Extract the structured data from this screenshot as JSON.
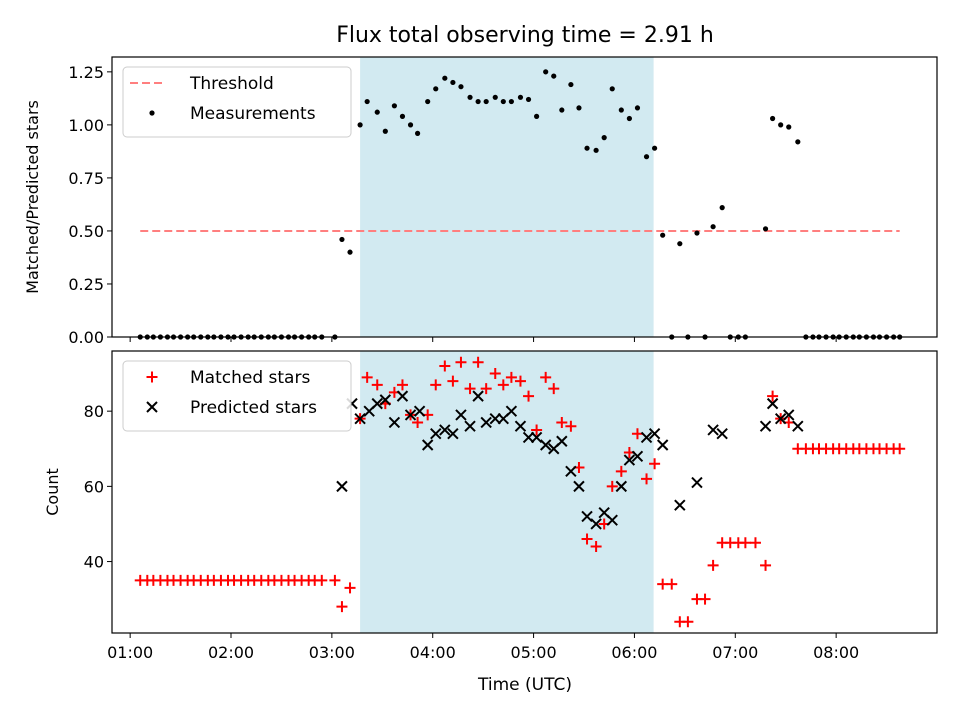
{
  "figure": {
    "title": "Flux total observing time = 2.91 h",
    "xlabel": "Time (UTC)"
  },
  "chart_data": [
    {
      "type": "scatter",
      "id": "ratio",
      "title": "Flux total observing time = 2.91 h",
      "xlabel": "",
      "ylabel": "Matched/Predicted stars",
      "xlim": [
        0.82,
        9.0
      ],
      "ylim": [
        0,
        1.32
      ],
      "xticks": [
        1,
        2,
        3,
        4,
        5,
        6,
        7,
        8
      ],
      "xtick_labels": [
        "01:00",
        "02:00",
        "03:00",
        "04:00",
        "05:00",
        "06:00",
        "07:00",
        "08:00"
      ],
      "yticks": [
        0,
        0.25,
        0.5,
        0.75,
        1.0,
        1.25
      ],
      "ytick_labels": [
        "0.00",
        "0.25",
        "0.50",
        "0.75",
        "1.00",
        "1.25"
      ],
      "grid": false,
      "legend_position": "top-left",
      "shaded_span": {
        "x0": 3.28,
        "x1": 6.19,
        "color": "#add8e6"
      },
      "threshold": {
        "name": "Threshold",
        "y": 0.5,
        "x0": 1.1,
        "x1": 8.63,
        "color": "#ff7f7f",
        "style": "dashed"
      },
      "series": [
        {
          "name": "Measurements",
          "marker": "dot",
          "color": "#000000",
          "points": [
            [
              1.1,
              0
            ],
            [
              1.17,
              0
            ],
            [
              1.23,
              0
            ],
            [
              1.3,
              0
            ],
            [
              1.37,
              0
            ],
            [
              1.43,
              0
            ],
            [
              1.5,
              0
            ],
            [
              1.57,
              0
            ],
            [
              1.63,
              0
            ],
            [
              1.7,
              0
            ],
            [
              1.77,
              0
            ],
            [
              1.83,
              0
            ],
            [
              1.9,
              0
            ],
            [
              1.97,
              0
            ],
            [
              2.03,
              0
            ],
            [
              2.1,
              0
            ],
            [
              2.17,
              0
            ],
            [
              2.23,
              0
            ],
            [
              2.3,
              0
            ],
            [
              2.37,
              0
            ],
            [
              2.43,
              0
            ],
            [
              2.5,
              0
            ],
            [
              2.57,
              0
            ],
            [
              2.63,
              0
            ],
            [
              2.7,
              0
            ],
            [
              2.77,
              0
            ],
            [
              2.83,
              0
            ],
            [
              2.9,
              0
            ],
            [
              3.03,
              0
            ],
            [
              3.1,
              0.46
            ],
            [
              3.18,
              0.4
            ],
            [
              3.28,
              1.0
            ],
            [
              3.35,
              1.11
            ],
            [
              3.45,
              1.06
            ],
            [
              3.53,
              0.97
            ],
            [
              3.62,
              1.09
            ],
            [
              3.7,
              1.04
            ],
            [
              3.78,
              1.0
            ],
            [
              3.85,
              0.96
            ],
            [
              3.95,
              1.11
            ],
            [
              4.03,
              1.17
            ],
            [
              4.12,
              1.22
            ],
            [
              4.2,
              1.2
            ],
            [
              4.28,
              1.18
            ],
            [
              4.37,
              1.13
            ],
            [
              4.45,
              1.11
            ],
            [
              4.53,
              1.11
            ],
            [
              4.62,
              1.13
            ],
            [
              4.7,
              1.11
            ],
            [
              4.78,
              1.11
            ],
            [
              4.87,
              1.13
            ],
            [
              4.95,
              1.12
            ],
            [
              5.03,
              1.04
            ],
            [
              5.12,
              1.25
            ],
            [
              5.2,
              1.23
            ],
            [
              5.28,
              1.07
            ],
            [
              5.37,
              1.19
            ],
            [
              5.45,
              1.08
            ],
            [
              5.53,
              0.89
            ],
            [
              5.62,
              0.88
            ],
            [
              5.7,
              0.94
            ],
            [
              5.78,
              1.17
            ],
            [
              5.87,
              1.07
            ],
            [
              5.95,
              1.03
            ],
            [
              6.03,
              1.08
            ],
            [
              6.12,
              0.85
            ],
            [
              6.2,
              0.89
            ],
            [
              6.28,
              0.48
            ],
            [
              6.37,
              0
            ],
            [
              6.45,
              0.44
            ],
            [
              6.53,
              0
            ],
            [
              6.62,
              0.49
            ],
            [
              6.7,
              0
            ],
            [
              6.78,
              0.52
            ],
            [
              6.87,
              0.61
            ],
            [
              6.95,
              0
            ],
            [
              7.03,
              0
            ],
            [
              7.1,
              0
            ],
            [
              7.3,
              0.51
            ],
            [
              7.37,
              1.03
            ],
            [
              7.45,
              1.0
            ],
            [
              7.53,
              0.99
            ],
            [
              7.62,
              0.92
            ],
            [
              7.7,
              0
            ],
            [
              7.77,
              0
            ],
            [
              7.83,
              0
            ],
            [
              7.9,
              0
            ],
            [
              7.97,
              0
            ],
            [
              8.03,
              0
            ],
            [
              8.1,
              0
            ],
            [
              8.17,
              0
            ],
            [
              8.23,
              0
            ],
            [
              8.3,
              0
            ],
            [
              8.37,
              0
            ],
            [
              8.43,
              0
            ],
            [
              8.5,
              0
            ],
            [
              8.57,
              0
            ],
            [
              8.63,
              0
            ]
          ]
        }
      ]
    },
    {
      "type": "scatter",
      "id": "counts",
      "title": "",
      "xlabel": "Time (UTC)",
      "ylabel": "Count",
      "xlim": [
        0.82,
        9.0
      ],
      "ylim": [
        21,
        96
      ],
      "xticks": [
        1,
        2,
        3,
        4,
        5,
        6,
        7,
        8
      ],
      "xtick_labels": [
        "01:00",
        "02:00",
        "03:00",
        "04:00",
        "05:00",
        "06:00",
        "07:00",
        "08:00"
      ],
      "yticks": [
        40,
        60,
        80
      ],
      "ytick_labels": [
        "40",
        "60",
        "80"
      ],
      "grid": false,
      "legend_position": "top-left",
      "shaded_span": {
        "x0": 3.28,
        "x1": 6.19,
        "color": "#add8e6"
      },
      "series": [
        {
          "name": "Matched stars",
          "marker": "plus",
          "color": "#ff0000",
          "points": [
            [
              1.1,
              35
            ],
            [
              1.17,
              35
            ],
            [
              1.23,
              35
            ],
            [
              1.3,
              35
            ],
            [
              1.37,
              35
            ],
            [
              1.43,
              35
            ],
            [
              1.5,
              35
            ],
            [
              1.57,
              35
            ],
            [
              1.63,
              35
            ],
            [
              1.7,
              35
            ],
            [
              1.77,
              35
            ],
            [
              1.83,
              35
            ],
            [
              1.9,
              35
            ],
            [
              1.97,
              35
            ],
            [
              2.03,
              35
            ],
            [
              2.1,
              35
            ],
            [
              2.17,
              35
            ],
            [
              2.23,
              35
            ],
            [
              2.3,
              35
            ],
            [
              2.37,
              35
            ],
            [
              2.43,
              35
            ],
            [
              2.5,
              35
            ],
            [
              2.57,
              35
            ],
            [
              2.63,
              35
            ],
            [
              2.7,
              35
            ],
            [
              2.77,
              35
            ],
            [
              2.83,
              35
            ],
            [
              2.9,
              35
            ],
            [
              3.03,
              35
            ],
            [
              3.1,
              28
            ],
            [
              3.18,
              33
            ],
            [
              3.28,
              78
            ],
            [
              3.35,
              89
            ],
            [
              3.45,
              87
            ],
            [
              3.53,
              82
            ],
            [
              3.62,
              85
            ],
            [
              3.7,
              87
            ],
            [
              3.78,
              79
            ],
            [
              3.85,
              77
            ],
            [
              3.95,
              79
            ],
            [
              4.03,
              87
            ],
            [
              4.12,
              92
            ],
            [
              4.2,
              88
            ],
            [
              4.28,
              93
            ],
            [
              4.37,
              86
            ],
            [
              4.45,
              93
            ],
            [
              4.53,
              86
            ],
            [
              4.62,
              90
            ],
            [
              4.7,
              87
            ],
            [
              4.78,
              89
            ],
            [
              4.87,
              88
            ],
            [
              4.95,
              84
            ],
            [
              5.03,
              75
            ],
            [
              5.12,
              89
            ],
            [
              5.2,
              86
            ],
            [
              5.28,
              77
            ],
            [
              5.37,
              76
            ],
            [
              5.45,
              65
            ],
            [
              5.53,
              46
            ],
            [
              5.62,
              44
            ],
            [
              5.7,
              50
            ],
            [
              5.78,
              60
            ],
            [
              5.87,
              64
            ],
            [
              5.95,
              69
            ],
            [
              6.03,
              74
            ],
            [
              6.12,
              62
            ],
            [
              6.2,
              66
            ],
            [
              6.28,
              34
            ],
            [
              6.37,
              34
            ],
            [
              6.45,
              24
            ],
            [
              6.53,
              24
            ],
            [
              6.62,
              30
            ],
            [
              6.7,
              30
            ],
            [
              6.78,
              39
            ],
            [
              6.87,
              45
            ],
            [
              6.95,
              45
            ],
            [
              7.03,
              45
            ],
            [
              7.1,
              45
            ],
            [
              7.2,
              45
            ],
            [
              7.3,
              39
            ],
            [
              7.37,
              84
            ],
            [
              7.45,
              78
            ],
            [
              7.53,
              77
            ],
            [
              7.62,
              70
            ],
            [
              7.7,
              70
            ],
            [
              7.77,
              70
            ],
            [
              7.83,
              70
            ],
            [
              7.9,
              70
            ],
            [
              7.97,
              70
            ],
            [
              8.03,
              70
            ],
            [
              8.1,
              70
            ],
            [
              8.17,
              70
            ],
            [
              8.23,
              70
            ],
            [
              8.3,
              70
            ],
            [
              8.37,
              70
            ],
            [
              8.43,
              70
            ],
            [
              8.5,
              70
            ],
            [
              8.57,
              70
            ],
            [
              8.63,
              70
            ]
          ]
        },
        {
          "name": "Predicted stars",
          "marker": "x",
          "color": "#000000",
          "points": [
            [
              3.1,
              60
            ],
            [
              3.2,
              82
            ],
            [
              3.28,
              78
            ],
            [
              3.37,
              80
            ],
            [
              3.45,
              82
            ],
            [
              3.53,
              83
            ],
            [
              3.62,
              77
            ],
            [
              3.7,
              84
            ],
            [
              3.78,
              79
            ],
            [
              3.87,
              80
            ],
            [
              3.95,
              71
            ],
            [
              4.03,
              74
            ],
            [
              4.12,
              75
            ],
            [
              4.2,
              74
            ],
            [
              4.28,
              79
            ],
            [
              4.37,
              76
            ],
            [
              4.45,
              84
            ],
            [
              4.53,
              77
            ],
            [
              4.62,
              78
            ],
            [
              4.7,
              78
            ],
            [
              4.78,
              80
            ],
            [
              4.87,
              76
            ],
            [
              4.95,
              73
            ],
            [
              5.03,
              73
            ],
            [
              5.12,
              71
            ],
            [
              5.2,
              70
            ],
            [
              5.28,
              72
            ],
            [
              5.37,
              64
            ],
            [
              5.45,
              60
            ],
            [
              5.53,
              52
            ],
            [
              5.62,
              50
            ],
            [
              5.7,
              53
            ],
            [
              5.78,
              51
            ],
            [
              5.87,
              60
            ],
            [
              5.95,
              67
            ],
            [
              6.03,
              68
            ],
            [
              6.12,
              73
            ],
            [
              6.2,
              74
            ],
            [
              6.28,
              71
            ],
            [
              6.45,
              55
            ],
            [
              6.62,
              61
            ],
            [
              6.78,
              75
            ],
            [
              6.87,
              74
            ],
            [
              7.3,
              76
            ],
            [
              7.37,
              82
            ],
            [
              7.45,
              78
            ],
            [
              7.53,
              79
            ],
            [
              7.62,
              76
            ]
          ]
        }
      ]
    }
  ]
}
